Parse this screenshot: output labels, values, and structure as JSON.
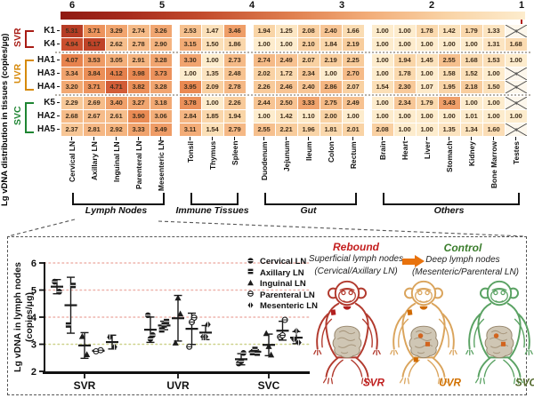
{
  "chart_data": [
    {
      "type": "heatmap",
      "ylabel": "Lg vDNA distribution in tissues (copies/μg)",
      "colorbar": {
        "ticks": [
          "6",
          "5",
          "4",
          "3",
          "2",
          "1"
        ],
        "range": [
          1,
          6
        ]
      },
      "colormap": {
        "1": "#fdeccd",
        "2": "#f9d3a5",
        "3": "#f4b17c",
        "4": "#e98750",
        "5": "#c94b2d",
        "6": "#8f1a12"
      },
      "row_groups": [
        {
          "name": "SVR",
          "color": "#a81c15",
          "rows": [
            "K1",
            "K4"
          ]
        },
        {
          "name": "UVR",
          "color": "#d68a0b",
          "rows": [
            "HA1",
            "HA3",
            "HA4"
          ]
        },
        {
          "name": "SVC",
          "color": "#1e8532",
          "rows": [
            "K5",
            "HA2",
            "HA5"
          ]
        }
      ],
      "column_groups": [
        {
          "name": "Lymph Nodes",
          "columns": [
            "Cervical LN",
            "Axillary LN",
            "Inguinal LN",
            "Parenteral LN",
            "Mesenteric LN"
          ]
        },
        {
          "name": "Immune Tissues",
          "columns": [
            "Tonsil",
            "Thymus",
            "Spleen"
          ]
        },
        {
          "name": "Gut",
          "columns": [
            "Duodenum",
            "Jejunum",
            "Ileum",
            "Colon",
            "Rectum"
          ]
        },
        {
          "name": "Others",
          "columns": [
            "Brain",
            "Heart",
            "Liver",
            "Stomach",
            "Kidney",
            "Bone Marrow",
            "Testes"
          ]
        }
      ],
      "values": {
        "K1": [
          5.31,
          3.71,
          3.29,
          2.74,
          3.26,
          2.53,
          1.47,
          3.46,
          1.94,
          1.25,
          2.08,
          2.4,
          1.66,
          1.0,
          1.0,
          1.78,
          1.42,
          1.79,
          1.33,
          null
        ],
        "K4": [
          4.94,
          5.17,
          2.62,
          2.78,
          2.9,
          3.15,
          1.5,
          1.86,
          1.0,
          1.0,
          2.1,
          1.84,
          2.19,
          1.0,
          1.0,
          1.0,
          1.0,
          1.0,
          1.31,
          1.68
        ],
        "HA1": [
          4.07,
          3.53,
          3.05,
          2.91,
          3.28,
          3.3,
          1.0,
          2.73,
          2.74,
          2.49,
          2.07,
          2.19,
          2.25,
          1.0,
          1.94,
          1.45,
          2.55,
          1.68,
          1.53,
          1.0
        ],
        "HA3": [
          3.34,
          3.84,
          4.12,
          3.98,
          3.73,
          1.0,
          1.35,
          2.48,
          2.02,
          1.72,
          2.34,
          1.0,
          2.7,
          1.0,
          1.78,
          1.0,
          1.58,
          1.52,
          1.0,
          null
        ],
        "HA4": [
          3.2,
          3.71,
          4.71,
          3.82,
          3.28,
          3.95,
          2.09,
          2.78,
          2.26,
          2.46,
          2.4,
          2.86,
          2.07,
          1.54,
          2.3,
          1.07,
          1.95,
          2.18,
          1.5,
          null
        ],
        "K5": [
          2.29,
          2.69,
          3.4,
          3.27,
          3.18,
          3.78,
          1.0,
          2.26,
          2.44,
          2.5,
          3.33,
          2.75,
          2.49,
          1.0,
          2.34,
          1.79,
          3.43,
          1.0,
          1.0,
          null
        ],
        "HA2": [
          2.68,
          2.67,
          2.61,
          3.9,
          3.06,
          2.84,
          1.85,
          1.94,
          1.0,
          1.42,
          1.1,
          2.0,
          1.0,
          1.0,
          1.0,
          1.0,
          1.0,
          1.01,
          1.0,
          1.0
        ],
        "HA5": [
          2.37,
          2.81,
          2.92,
          3.33,
          3.49,
          3.11,
          1.54,
          2.79,
          2.55,
          2.21,
          1.96,
          1.81,
          2.01,
          2.08,
          1.0,
          1.0,
          1.35,
          1.34,
          1.6,
          null
        ]
      },
      "na_symbol": "♀"
    },
    {
      "type": "scatter",
      "ylabel_line1": "Lg vDNA in lymph nodes",
      "ylabel_line2": "(copies/μg)",
      "ylim": [
        2,
        6
      ],
      "yticks": [
        6,
        5,
        4,
        3,
        2
      ],
      "categories": [
        "SVR",
        "UVR",
        "SVC"
      ],
      "gridlines": [
        3,
        4,
        5,
        6
      ],
      "gridline_color": "#eeb3ac",
      "gridline_color_at_3": "#cdd28b",
      "series": [
        {
          "name": "Cervical LN",
          "marker": "circle-half",
          "values": {
            "SVR": [
              5.31,
              4.94
            ],
            "UVR": [
              4.07,
              3.34,
              3.2
            ],
            "SVC": [
              2.29,
              2.68,
              2.37
            ]
          }
        },
        {
          "name": "Axillary LN",
          "marker": "square-half",
          "values": {
            "SVR": [
              3.71,
              5.17
            ],
            "UVR": [
              3.53,
              3.84,
              3.71
            ],
            "SVC": [
              2.69,
              2.67,
              2.81
            ]
          }
        },
        {
          "name": "Inguinal LN",
          "marker": "triangle",
          "values": {
            "SVR": [
              3.29,
              2.62
            ],
            "UVR": [
              3.05,
              4.12,
              4.71
            ],
            "SVC": [
              3.4,
              2.61,
              2.92
            ]
          }
        },
        {
          "name": "Parenteral LN",
          "marker": "circle-open",
          "values": {
            "SVR": [
              2.74,
              2.78
            ],
            "UVR": [
              2.91,
              3.98,
              3.82
            ],
            "SVC": [
              3.27,
              3.9,
              3.33
            ]
          }
        },
        {
          "name": "Mesenteric LN",
          "marker": "diamond-half",
          "values": {
            "SVR": [
              3.26,
              2.9
            ],
            "UVR": [
              3.28,
              3.73,
              3.28
            ],
            "SVC": [
              3.18,
              3.06,
              3.49
            ]
          }
        }
      ]
    }
  ],
  "annotation": {
    "rebound": {
      "title": "Rebound",
      "line1": "Superficial lymph nodes",
      "line2": "(Cervical/Axillary LN)",
      "color": "#c42020"
    },
    "control": {
      "title": "Control",
      "line1": "Deep lymph nodes",
      "line2": "(Mesenteric/Parenteral LN)",
      "color": "#3a7d2c"
    },
    "arrow_color": "#e8720c",
    "monkeys": [
      {
        "label": "SVR",
        "body_color": "#b23a2e",
        "label_color": "#c01f1f",
        "node_color": "#b21f1f",
        "gut_node_color": "#d2641e",
        "nodes": [
          "neck",
          "shoulder"
        ]
      },
      {
        "label": "UVR",
        "body_color": "#daa45c",
        "label_color": "#d17000",
        "node_color": "#d06a00",
        "gut_node_color": "#d2641e",
        "nodes": [
          "neck",
          "shoulder",
          "gut",
          "groin"
        ]
      },
      {
        "label": "SVC",
        "body_color": "#5aa263",
        "label_color": "#556b2f",
        "node_color": "#d06a00",
        "gut_node_color": "#d2641e",
        "nodes": [
          "gut"
        ]
      }
    ]
  }
}
